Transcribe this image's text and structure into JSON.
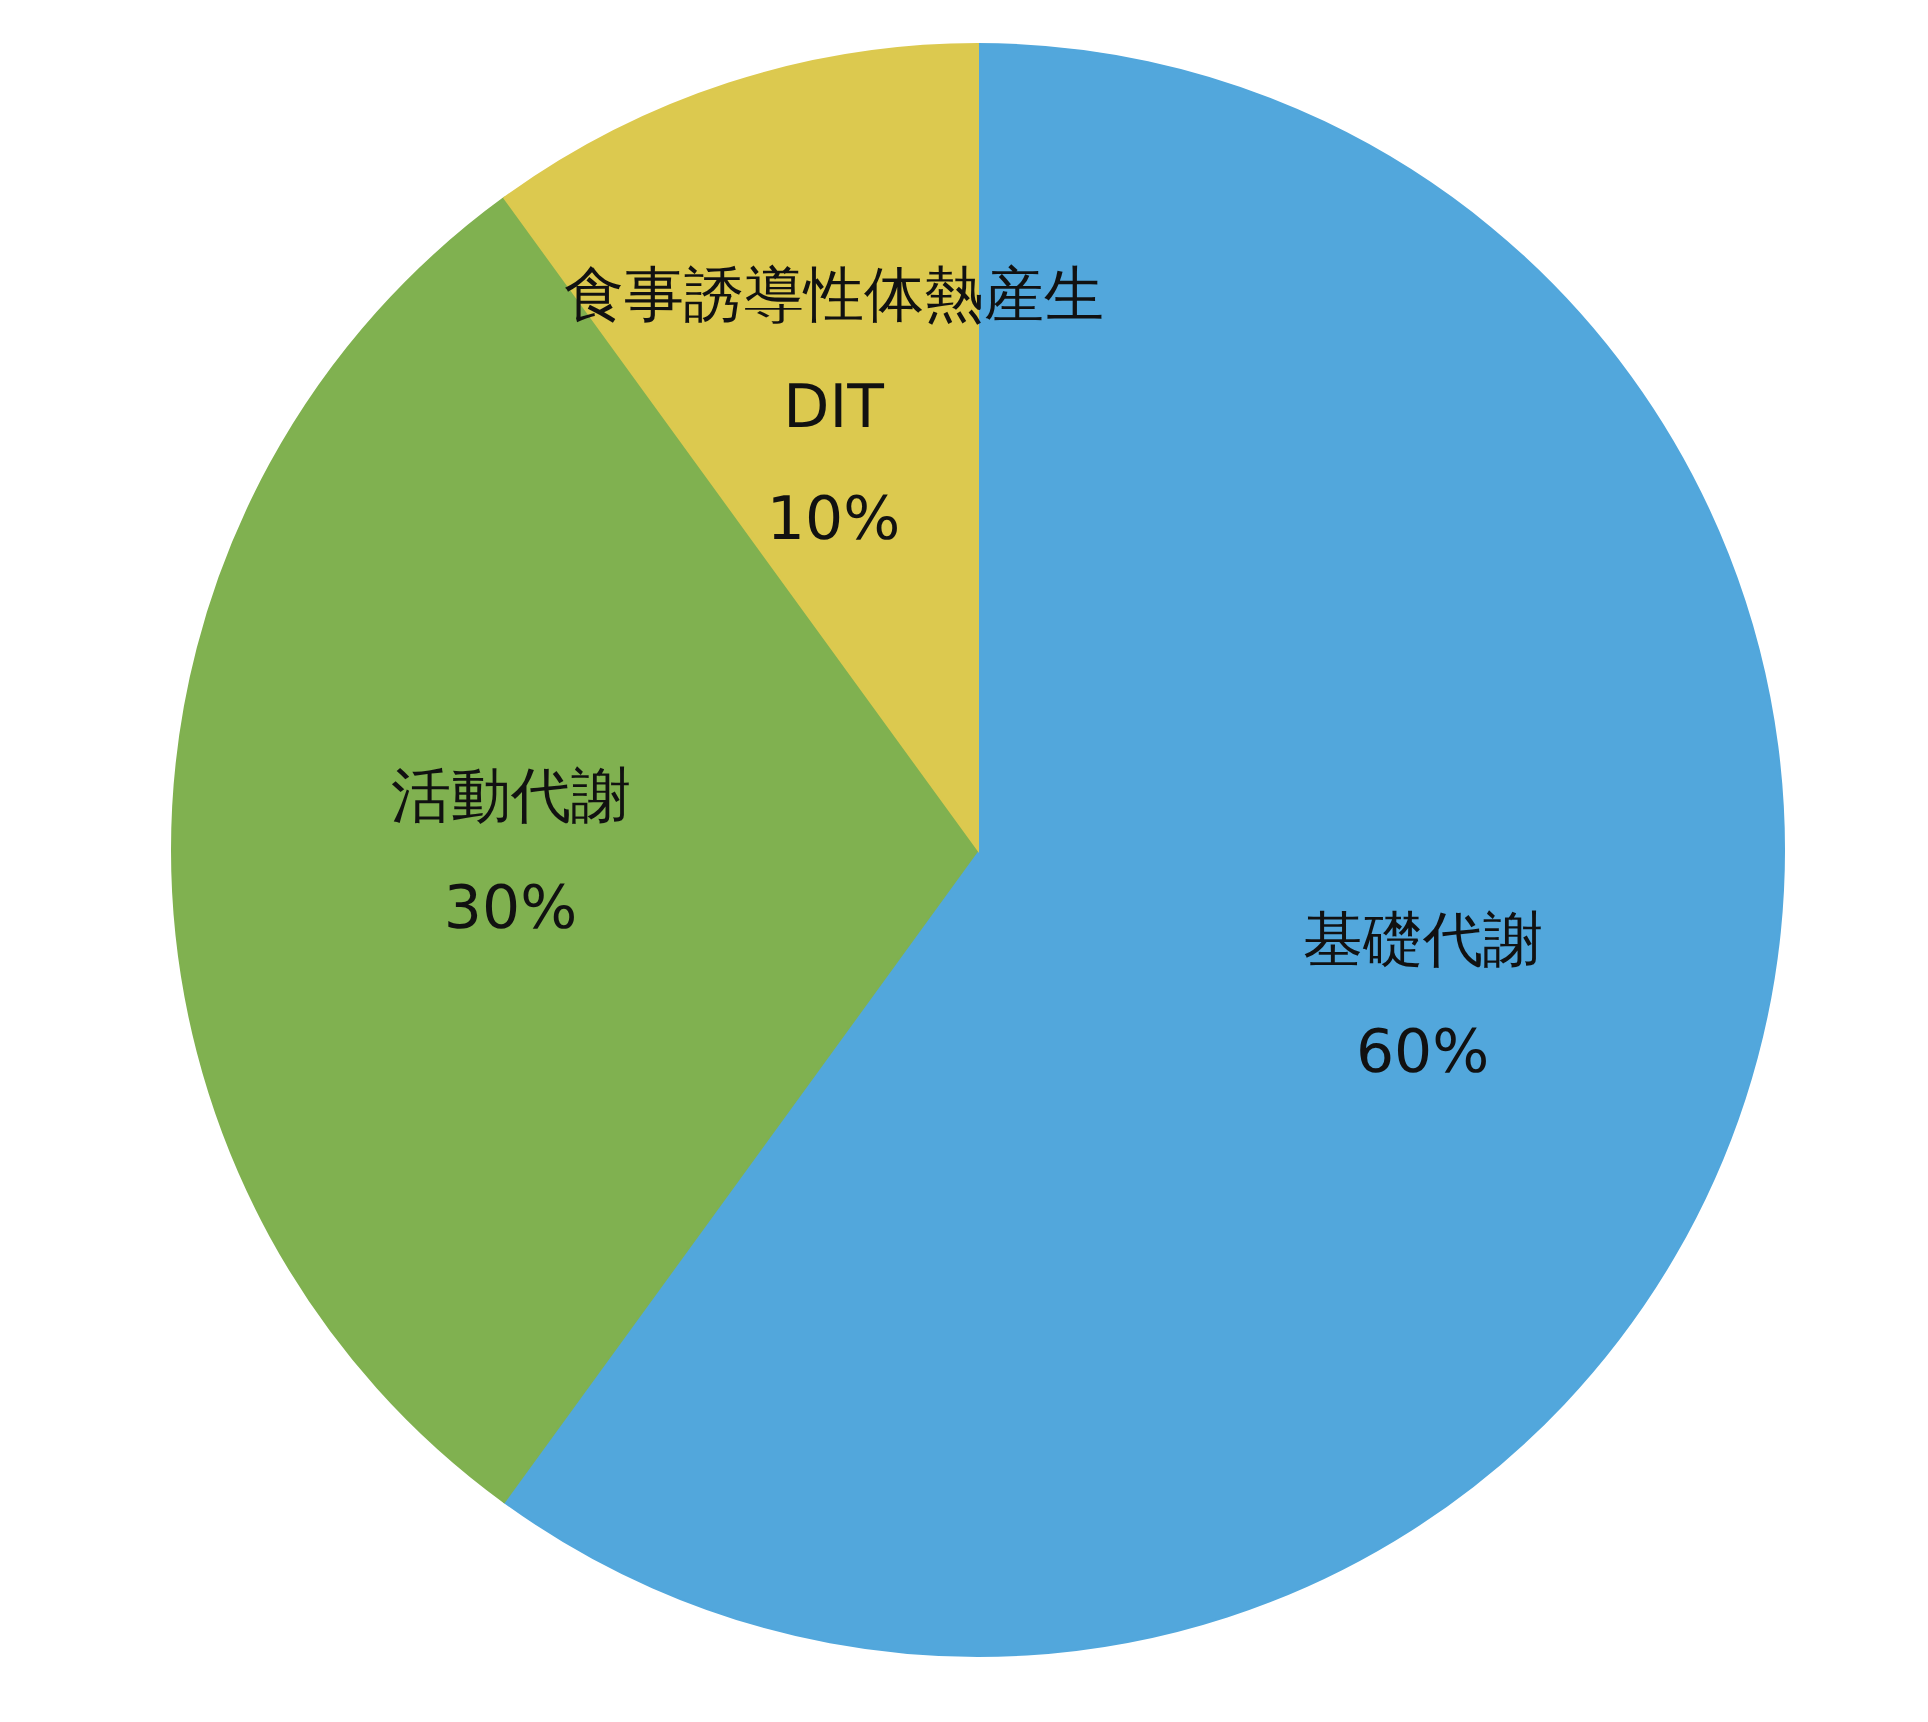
{
  "chart_data": {
    "type": "pie",
    "categories": [
      "基礎代謝",
      "活動代謝",
      "食事誘導性体熱産生\nDIT"
    ],
    "values": [
      60,
      30,
      10
    ],
    "colors": [
      "#52a7dc",
      "#80b150",
      "#dcc94f"
    ],
    "value_labels": [
      "60%",
      "30%",
      "10%"
    ],
    "legend": false
  }
}
